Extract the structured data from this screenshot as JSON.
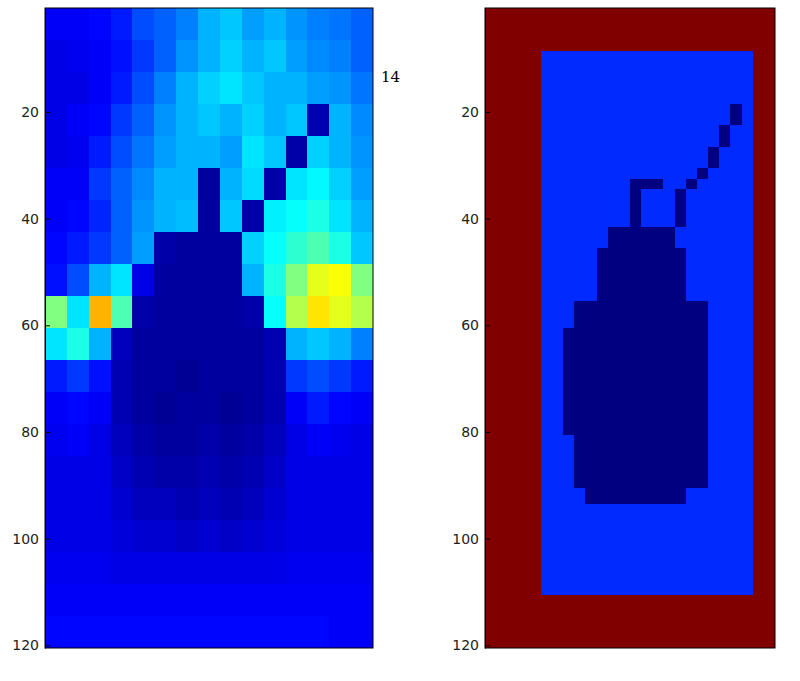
{
  "chart_data": [
    {
      "type": "heatmap",
      "xlim": [
        0.5,
        60.5
      ],
      "ylim": [
        0.5,
        120.5
      ],
      "yticks": [
        20,
        40,
        60,
        80,
        100,
        120
      ],
      "tick_labels": "y",
      "color_range": [
        0,
        1
      ],
      "annotations": [
        "14"
      ],
      "x_edges": [
        0.5,
        4.5,
        8.5,
        12.5,
        16.5,
        20.5,
        24.5,
        28.5,
        32.5,
        36.5,
        40.5,
        44.5,
        48.5,
        52.5,
        56.5,
        60.5
      ],
      "y_edges": [
        0.5,
        6.5,
        12.5,
        18.5,
        24.5,
        30.5,
        36.5,
        42.5,
        48.5,
        54.5,
        60.5,
        66.5,
        72.5,
        78.5,
        84.5,
        90.5,
        96.5,
        102.5,
        108.5,
        114.5,
        120.5
      ],
      "cells": [
        [
          0.12,
          0.12,
          0.13,
          0.15,
          0.2,
          0.22,
          0.25,
          0.3,
          0.32,
          0.28,
          0.3,
          0.27,
          0.25,
          0.24,
          0.22
        ],
        [
          0.1,
          0.11,
          0.12,
          0.14,
          0.18,
          0.22,
          0.27,
          0.3,
          0.33,
          0.3,
          0.32,
          0.28,
          0.26,
          0.25,
          0.22
        ],
        [
          0.1,
          0.1,
          0.12,
          0.15,
          0.2,
          0.25,
          0.3,
          0.33,
          0.35,
          0.32,
          0.3,
          0.3,
          0.28,
          0.27,
          0.24
        ],
        [
          0.1,
          0.12,
          0.13,
          0.18,
          0.22,
          0.27,
          0.3,
          0.32,
          0.3,
          0.33,
          0.3,
          0.32,
          0.05,
          0.3,
          0.26
        ],
        [
          0.1,
          0.11,
          0.15,
          0.2,
          0.24,
          0.28,
          0.3,
          0.3,
          0.28,
          0.35,
          0.32,
          0.04,
          0.33,
          0.3,
          0.27
        ],
        [
          0.12,
          0.12,
          0.18,
          0.22,
          0.26,
          0.3,
          0.3,
          0.03,
          0.3,
          0.34,
          0.04,
          0.35,
          0.37,
          0.33,
          0.28
        ],
        [
          0.12,
          0.13,
          0.16,
          0.22,
          0.27,
          0.3,
          0.31,
          0.03,
          0.32,
          0.04,
          0.36,
          0.38,
          0.4,
          0.35,
          0.3
        ],
        [
          0.13,
          0.15,
          0.18,
          0.22,
          0.28,
          0.04,
          0.03,
          0.03,
          0.03,
          0.33,
          0.38,
          0.42,
          0.45,
          0.4,
          0.32
        ],
        [
          0.14,
          0.2,
          0.3,
          0.35,
          0.1,
          0.03,
          0.03,
          0.03,
          0.03,
          0.3,
          0.4,
          0.5,
          0.6,
          0.62,
          0.5
        ],
        [
          0.5,
          0.35,
          0.7,
          0.45,
          0.04,
          0.03,
          0.03,
          0.03,
          0.03,
          0.04,
          0.38,
          0.55,
          0.65,
          0.6,
          0.55
        ],
        [
          0.35,
          0.4,
          0.3,
          0.06,
          0.03,
          0.03,
          0.03,
          0.03,
          0.03,
          0.03,
          0.05,
          0.3,
          0.32,
          0.3,
          0.25
        ],
        [
          0.15,
          0.18,
          0.14,
          0.05,
          0.03,
          0.03,
          0.02,
          0.03,
          0.03,
          0.03,
          0.05,
          0.18,
          0.2,
          0.18,
          0.15
        ],
        [
          0.12,
          0.13,
          0.12,
          0.05,
          0.03,
          0.02,
          0.03,
          0.03,
          0.02,
          0.03,
          0.05,
          0.12,
          0.15,
          0.13,
          0.12
        ],
        [
          0.11,
          0.12,
          0.1,
          0.06,
          0.04,
          0.03,
          0.03,
          0.04,
          0.03,
          0.04,
          0.06,
          0.1,
          0.12,
          0.11,
          0.1
        ],
        [
          0.1,
          0.1,
          0.1,
          0.07,
          0.05,
          0.04,
          0.04,
          0.05,
          0.04,
          0.05,
          0.07,
          0.1,
          0.1,
          0.1,
          0.1
        ],
        [
          0.1,
          0.1,
          0.1,
          0.08,
          0.06,
          0.06,
          0.05,
          0.06,
          0.05,
          0.06,
          0.08,
          0.1,
          0.1,
          0.1,
          0.1
        ],
        [
          0.1,
          0.1,
          0.1,
          0.09,
          0.08,
          0.08,
          0.07,
          0.08,
          0.07,
          0.08,
          0.09,
          0.1,
          0.1,
          0.1,
          0.1
        ],
        [
          0.11,
          0.11,
          0.11,
          0.1,
          0.1,
          0.1,
          0.1,
          0.1,
          0.1,
          0.1,
          0.1,
          0.11,
          0.11,
          0.11,
          0.11
        ],
        [
          0.12,
          0.12,
          0.12,
          0.12,
          0.12,
          0.12,
          0.12,
          0.12,
          0.12,
          0.12,
          0.12,
          0.12,
          0.12,
          0.12,
          0.12
        ],
        [
          0.13,
          0.13,
          0.13,
          0.13,
          0.13,
          0.13,
          0.13,
          0.13,
          0.13,
          0.13,
          0.13,
          0.13,
          0.13,
          0.12,
          0.12
        ]
      ]
    },
    {
      "type": "heatmap",
      "xlim": [
        0.5,
        52.5
      ],
      "ylim": [
        0.5,
        120.5
      ],
      "yticks": [
        20,
        40,
        60,
        80,
        100,
        120
      ],
      "tick_labels": "y",
      "color_range": [
        0,
        6
      ],
      "x_edges": [
        0.5,
        2.5,
        4.5,
        6.5,
        8.5,
        10.5,
        12.5,
        14.5,
        16.5,
        18.5,
        20.5,
        22.5,
        24.5,
        26.5,
        28.5,
        30.5,
        32.5,
        34.5,
        36.5,
        38.5,
        40.5,
        42.5,
        44.5,
        46.5,
        48.5,
        50.5,
        52.5
      ],
      "y_edges": [
        0.5,
        8.5,
        18.5,
        22.5,
        26.5,
        30.5,
        32.5,
        34.5,
        41.5,
        45.5,
        55.5,
        60.5,
        80.5,
        90.5,
        93.5,
        110.5,
        120.5
      ],
      "cells": [
        [
          6,
          6,
          6,
          6,
          6,
          6,
          6,
          6,
          6,
          6,
          6,
          6,
          6,
          6,
          6,
          6,
          6,
          6,
          6,
          6,
          6,
          6,
          6,
          6,
          6,
          6
        ],
        [
          6,
          6,
          6,
          6,
          6,
          1,
          1,
          1,
          1,
          1,
          1,
          1,
          1,
          1,
          1,
          1,
          1,
          1,
          1,
          1,
          1,
          1,
          1,
          1,
          6,
          6
        ],
        [
          6,
          6,
          6,
          6,
          6,
          1,
          1,
          1,
          1,
          1,
          1,
          1,
          1,
          1,
          1,
          1,
          1,
          1,
          1,
          1,
          1,
          1,
          0,
          1,
          6,
          6
        ],
        [
          6,
          6,
          6,
          6,
          6,
          1,
          1,
          1,
          1,
          1,
          1,
          1,
          1,
          1,
          1,
          1,
          1,
          1,
          1,
          1,
          1,
          0,
          1,
          1,
          6,
          6
        ],
        [
          6,
          6,
          6,
          6,
          6,
          1,
          1,
          1,
          1,
          1,
          1,
          1,
          1,
          1,
          1,
          1,
          1,
          1,
          1,
          1,
          0,
          1,
          1,
          1,
          6,
          6
        ],
        [
          6,
          6,
          6,
          6,
          6,
          1,
          1,
          1,
          1,
          1,
          1,
          1,
          1,
          1,
          1,
          1,
          1,
          1,
          1,
          0,
          1,
          1,
          1,
          1,
          6,
          6
        ],
        [
          6,
          6,
          6,
          6,
          6,
          1,
          1,
          1,
          1,
          1,
          1,
          1,
          1,
          0,
          0,
          0,
          1,
          1,
          0,
          1,
          1,
          1,
          1,
          1,
          6,
          6
        ],
        [
          6,
          6,
          6,
          6,
          6,
          1,
          1,
          1,
          1,
          1,
          1,
          1,
          1,
          0,
          1,
          1,
          1,
          0,
          1,
          1,
          1,
          1,
          1,
          1,
          6,
          6
        ],
        [
          6,
          6,
          6,
          6,
          6,
          1,
          1,
          1,
          1,
          1,
          1,
          0,
          0,
          0,
          0,
          0,
          0,
          1,
          1,
          1,
          1,
          1,
          1,
          1,
          6,
          6
        ],
        [
          6,
          6,
          6,
          6,
          6,
          1,
          1,
          1,
          1,
          1,
          0,
          0,
          0,
          0,
          0,
          0,
          0,
          0,
          1,
          1,
          1,
          1,
          1,
          1,
          6,
          6
        ],
        [
          6,
          6,
          6,
          6,
          6,
          1,
          1,
          1,
          0,
          0,
          0,
          0,
          0,
          0,
          0,
          0,
          0,
          0,
          0,
          0,
          1,
          1,
          1,
          1,
          6,
          6
        ],
        [
          6,
          6,
          6,
          6,
          6,
          1,
          1,
          0,
          0,
          0,
          0,
          0,
          0,
          0,
          0,
          0,
          0,
          0,
          0,
          0,
          1,
          1,
          1,
          1,
          6,
          6
        ],
        [
          6,
          6,
          6,
          6,
          6,
          1,
          1,
          1,
          0,
          0,
          0,
          0,
          0,
          0,
          0,
          0,
          0,
          0,
          0,
          0,
          1,
          1,
          1,
          1,
          6,
          6
        ],
        [
          6,
          6,
          6,
          6,
          6,
          1,
          1,
          1,
          1,
          0,
          0,
          0,
          0,
          0,
          0,
          0,
          0,
          0,
          1,
          1,
          1,
          1,
          1,
          1,
          6,
          6
        ],
        [
          6,
          6,
          6,
          6,
          6,
          1,
          1,
          1,
          1,
          1,
          1,
          1,
          1,
          1,
          1,
          1,
          1,
          1,
          1,
          1,
          1,
          1,
          1,
          1,
          6,
          6
        ],
        [
          6,
          6,
          6,
          6,
          6,
          6,
          6,
          6,
          6,
          6,
          6,
          6,
          6,
          6,
          6,
          6,
          6,
          6,
          6,
          6,
          6,
          6,
          6,
          6,
          6,
          6
        ]
      ]
    }
  ]
}
